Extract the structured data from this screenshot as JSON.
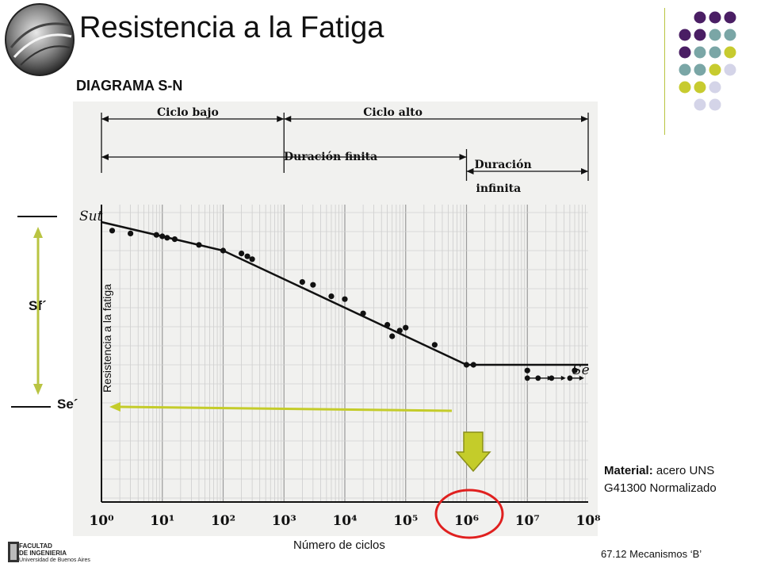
{
  "slide": {
    "title": "Resistencia a la Fatiga",
    "subtitle": "DIAGRAMA S-N",
    "ylabel": "Resistencia a la fatiga",
    "xlabel": "Número de ciclos",
    "sf_label": "Sf´",
    "se_label": "Se´",
    "material_bold": "Material:",
    "material_text": " acero UNS G41300 Normalizado",
    "course": "67.12 Mecanismos ‘B’",
    "faculty_logo_line1": "FACULTAD",
    "faculty_logo_line2": "DE INGENIERIA",
    "faculty_logo_line3": "Universidad de Buenos Aires"
  },
  "colors": {
    "accent_green": "#b9c442",
    "arrow_green": "#c4cc2a",
    "circle_red": "#e0201f",
    "dot_purple": "#4a1e64",
    "dot_teal": "#7aa6a6",
    "dot_lime": "#c7cb2f",
    "dot_lavender": "#d4d4e8"
  },
  "chart_data": {
    "type": "scatter",
    "x_scale": "log",
    "xlim": [
      1,
      100000000
    ],
    "x_tick_labels": [
      "10⁰",
      "10¹",
      "10²",
      "10³",
      "10⁴",
      "10⁵",
      "10⁶",
      "10⁷",
      "10⁸"
    ],
    "y_start_label": "Sut",
    "y_end_label": "Se",
    "regions": [
      {
        "label": "Ciclo bajo",
        "from": 1,
        "to": 1000
      },
      {
        "label": "Ciclo alto",
        "from": 1000,
        "to": 100000000
      },
      {
        "label": "Duración finita",
        "from": 1,
        "to": 1000000
      },
      {
        "label": "Duración infinita",
        "from": 1000000,
        "to": 100000000
      }
    ],
    "curve": [
      {
        "x": 1,
        "y": 1.0
      },
      {
        "x": 100,
        "y": 0.9
      },
      {
        "x": 1000000,
        "y": 0.5
      },
      {
        "x": 100000000,
        "y": 0.5
      }
    ],
    "points": [
      {
        "x": 1.5,
        "y": 0.97
      },
      {
        "x": 3,
        "y": 0.96
      },
      {
        "x": 8,
        "y": 0.955
      },
      {
        "x": 10,
        "y": 0.95
      },
      {
        "x": 12,
        "y": 0.945
      },
      {
        "x": 16,
        "y": 0.94
      },
      {
        "x": 40,
        "y": 0.92
      },
      {
        "x": 100,
        "y": 0.9
      },
      {
        "x": 200,
        "y": 0.89
      },
      {
        "x": 250,
        "y": 0.88
      },
      {
        "x": 300,
        "y": 0.87
      },
      {
        "x": 2000,
        "y": 0.79
      },
      {
        "x": 3000,
        "y": 0.78
      },
      {
        "x": 6000,
        "y": 0.74
      },
      {
        "x": 10000,
        "y": 0.73
      },
      {
        "x": 20000,
        "y": 0.68
      },
      {
        "x": 50000,
        "y": 0.64
      },
      {
        "x": 60000,
        "y": 0.6
      },
      {
        "x": 80000,
        "y": 0.62
      },
      {
        "x": 100000,
        "y": 0.63
      },
      {
        "x": 300000,
        "y": 0.57
      },
      {
        "x": 1000000,
        "y": 0.5
      },
      {
        "x": 1300000,
        "y": 0.5
      },
      {
        "x": 10000000,
        "y": 0.48
      },
      {
        "x": 60000000,
        "y": 0.48
      }
    ],
    "runouts": [
      {
        "x": 10000000,
        "y": 0.47
      },
      {
        "x": 15000000,
        "y": 0.47
      },
      {
        "x": 25000000,
        "y": 0.47
      },
      {
        "x": 50000000,
        "y": 0.47
      }
    ]
  }
}
